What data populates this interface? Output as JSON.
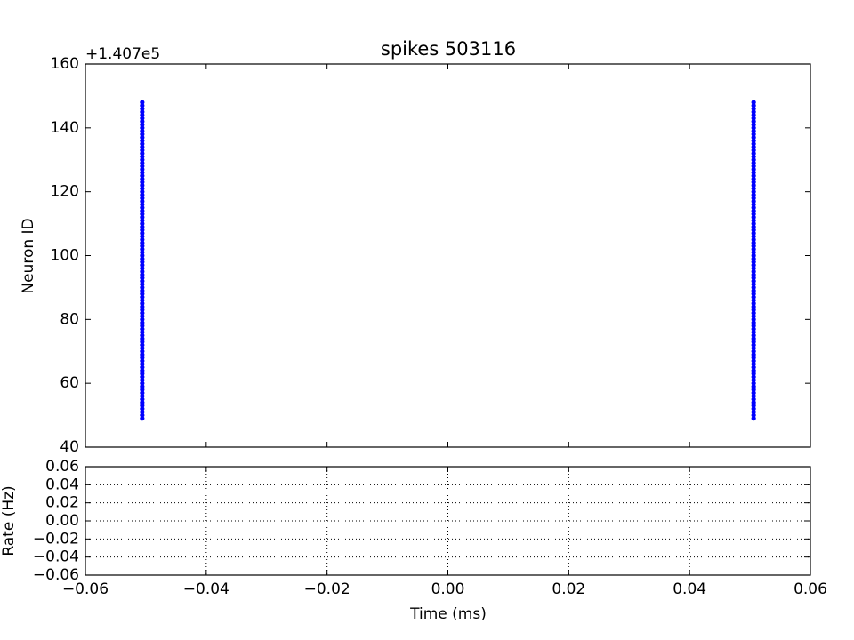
{
  "chart_data": [
    {
      "type": "scatter",
      "title": "spikes 503116",
      "ylabel": "Neuron ID",
      "y_offset_label": "+1.407e5",
      "color": "#0000ff",
      "series": [
        {
          "x": -0.0506,
          "values": [
            49,
            50,
            51,
            52,
            53,
            54,
            55,
            56,
            57,
            58,
            59,
            60,
            61,
            62,
            63,
            64,
            65,
            66,
            67,
            68,
            69,
            70,
            71,
            72,
            73,
            74,
            75,
            76,
            77,
            78,
            79,
            80,
            81,
            82,
            83,
            84,
            85,
            86,
            87,
            88,
            89,
            90,
            91,
            92,
            93,
            94,
            95,
            96,
            97,
            98,
            99,
            100,
            101,
            102,
            103,
            104,
            105,
            106,
            107,
            108,
            109,
            110,
            111,
            112,
            113,
            114,
            115,
            116,
            117,
            118,
            119,
            120,
            121,
            122,
            123,
            124,
            125,
            126,
            127,
            128,
            129,
            130,
            131,
            132,
            133,
            134,
            135,
            136,
            137,
            138,
            139,
            140,
            141,
            142,
            143,
            144,
            145,
            146,
            147,
            148
          ]
        },
        {
          "x": 0.0506,
          "values": [
            49,
            50,
            51,
            52,
            53,
            54,
            55,
            56,
            57,
            58,
            59,
            60,
            61,
            62,
            63,
            64,
            65,
            66,
            67,
            68,
            69,
            70,
            71,
            72,
            73,
            74,
            75,
            76,
            77,
            78,
            79,
            80,
            81,
            82,
            83,
            84,
            85,
            86,
            87,
            88,
            89,
            90,
            91,
            92,
            93,
            94,
            95,
            96,
            97,
            98,
            99,
            100,
            101,
            102,
            103,
            104,
            105,
            106,
            107,
            108,
            109,
            110,
            111,
            112,
            113,
            114,
            115,
            116,
            117,
            118,
            119,
            120,
            121,
            122,
            123,
            124,
            125,
            126,
            127,
            128,
            129,
            130,
            131,
            132,
            133,
            134,
            135,
            136,
            137,
            138,
            139,
            140,
            141,
            142,
            143,
            144,
            145,
            146,
            147,
            148
          ]
        }
      ],
      "xlim": [
        -0.06,
        0.06
      ],
      "ylim": [
        40,
        160
      ],
      "yticks": [
        40,
        60,
        80,
        100,
        120,
        140,
        160
      ]
    },
    {
      "type": "line",
      "xlabel": "Time (ms)",
      "ylabel": "Rate (Hz)",
      "grid": true,
      "xlim": [
        -0.06,
        0.06
      ],
      "xticks": [
        {
          "value": -0.06,
          "label": "−0.06"
        },
        {
          "value": -0.04,
          "label": "−0.04"
        },
        {
          "value": -0.02,
          "label": "−0.02"
        },
        {
          "value": 0,
          "label": "0.00"
        },
        0.02,
        0.04,
        0.06
      ],
      "ylim": [
        -0.06,
        0.06
      ],
      "yticks": [
        {
          "value": -0.06,
          "label": "−0.06"
        },
        {
          "value": -0.04,
          "label": "−0.04"
        },
        {
          "value": -0.02,
          "label": "−0.02"
        },
        {
          "value": 0,
          "label": "0.00"
        },
        0.02,
        0.04,
        0.06
      ]
    }
  ]
}
